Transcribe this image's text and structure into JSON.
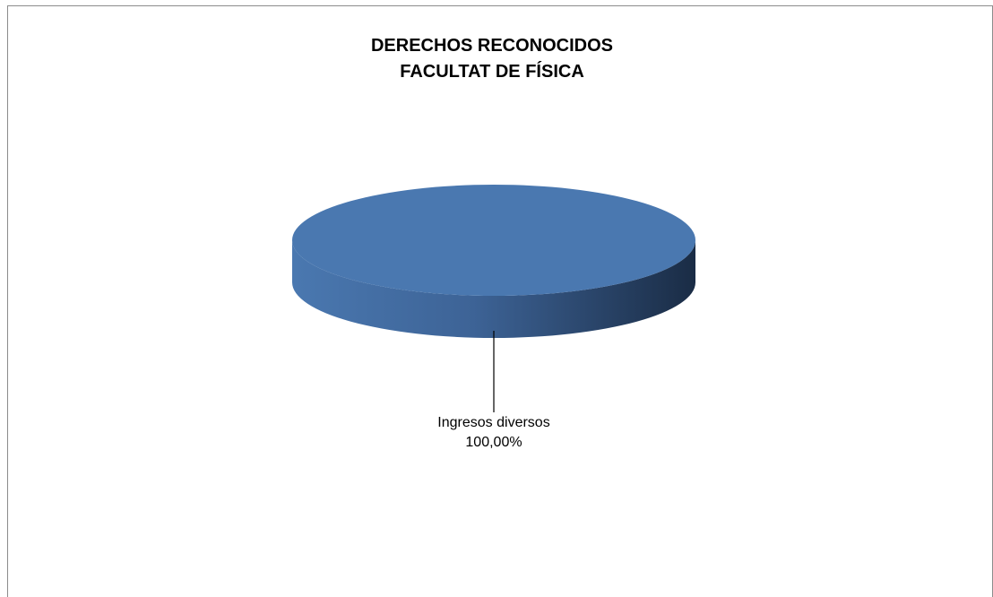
{
  "chart_data": {
    "type": "pie",
    "style": "3d",
    "title": [
      "DERECHOS RECONOCIDOS",
      "FACULTAT DE FÍSICA"
    ],
    "slices": [
      {
        "label": "Ingresos diversos",
        "value": 100.0,
        "value_label": "100,00%",
        "color": "#4a78b0"
      }
    ],
    "legend": "none"
  }
}
